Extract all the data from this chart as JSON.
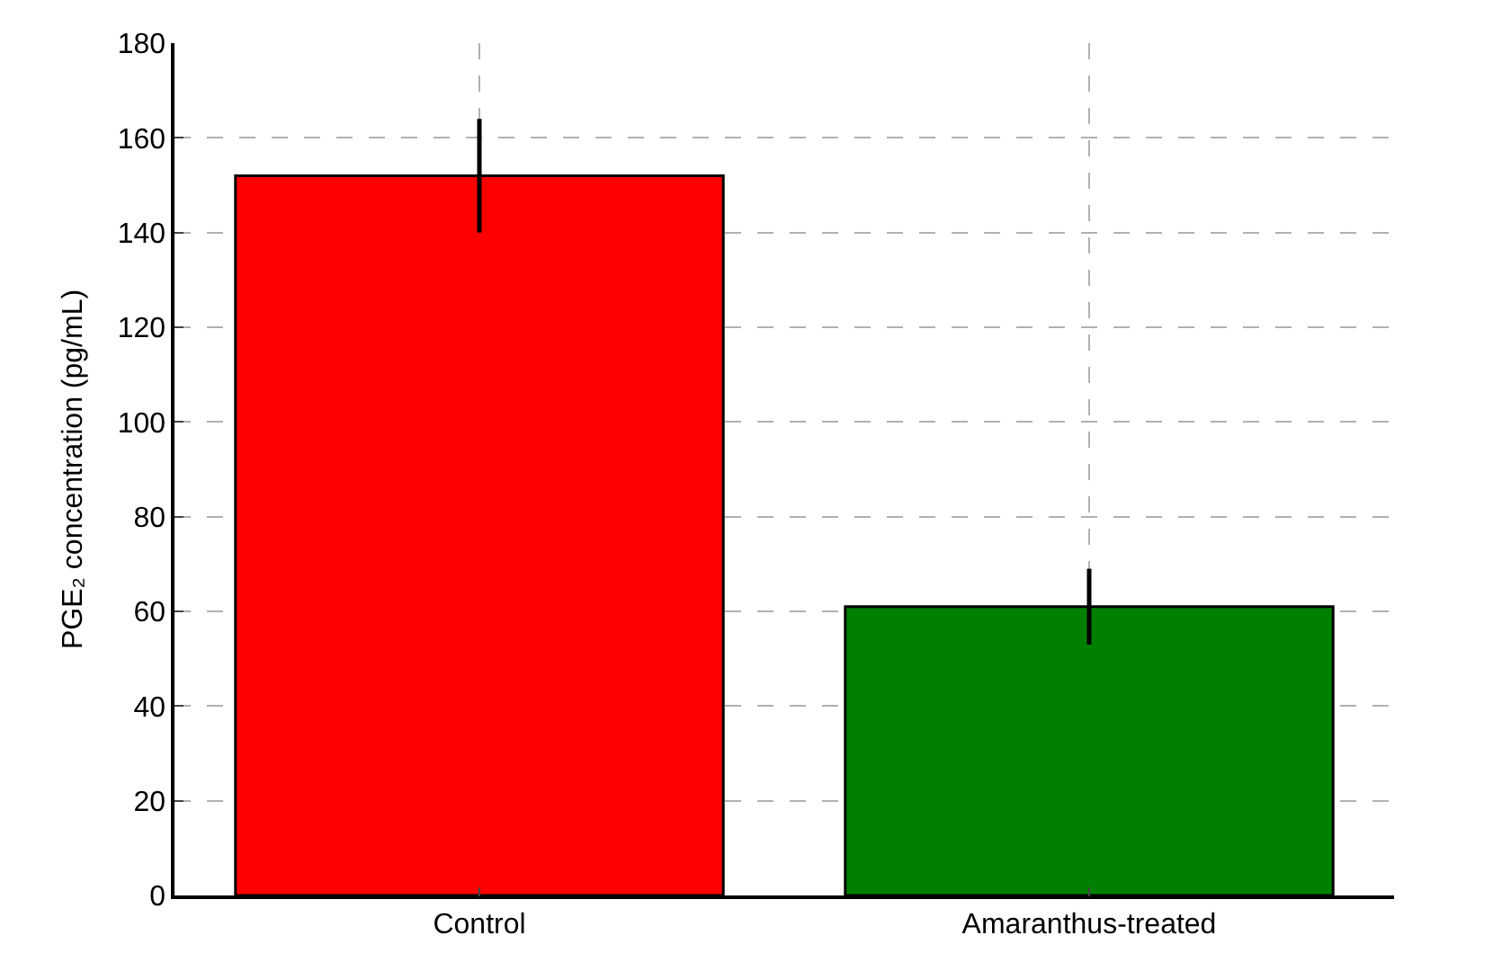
{
  "chart_data": {
    "type": "bar",
    "ylabel": "PGE₂ concentration (pg/mL)",
    "categories": [
      "Control",
      "Amaranthus-treated"
    ],
    "values": [
      152,
      61
    ],
    "colors": [
      "#ff0000",
      "#008000"
    ],
    "errors": [
      12,
      8
    ],
    "ylim": [
      0,
      180
    ],
    "yticks": [
      0,
      20,
      40,
      60,
      80,
      100,
      120,
      140,
      160,
      180
    ],
    "grid": true
  }
}
